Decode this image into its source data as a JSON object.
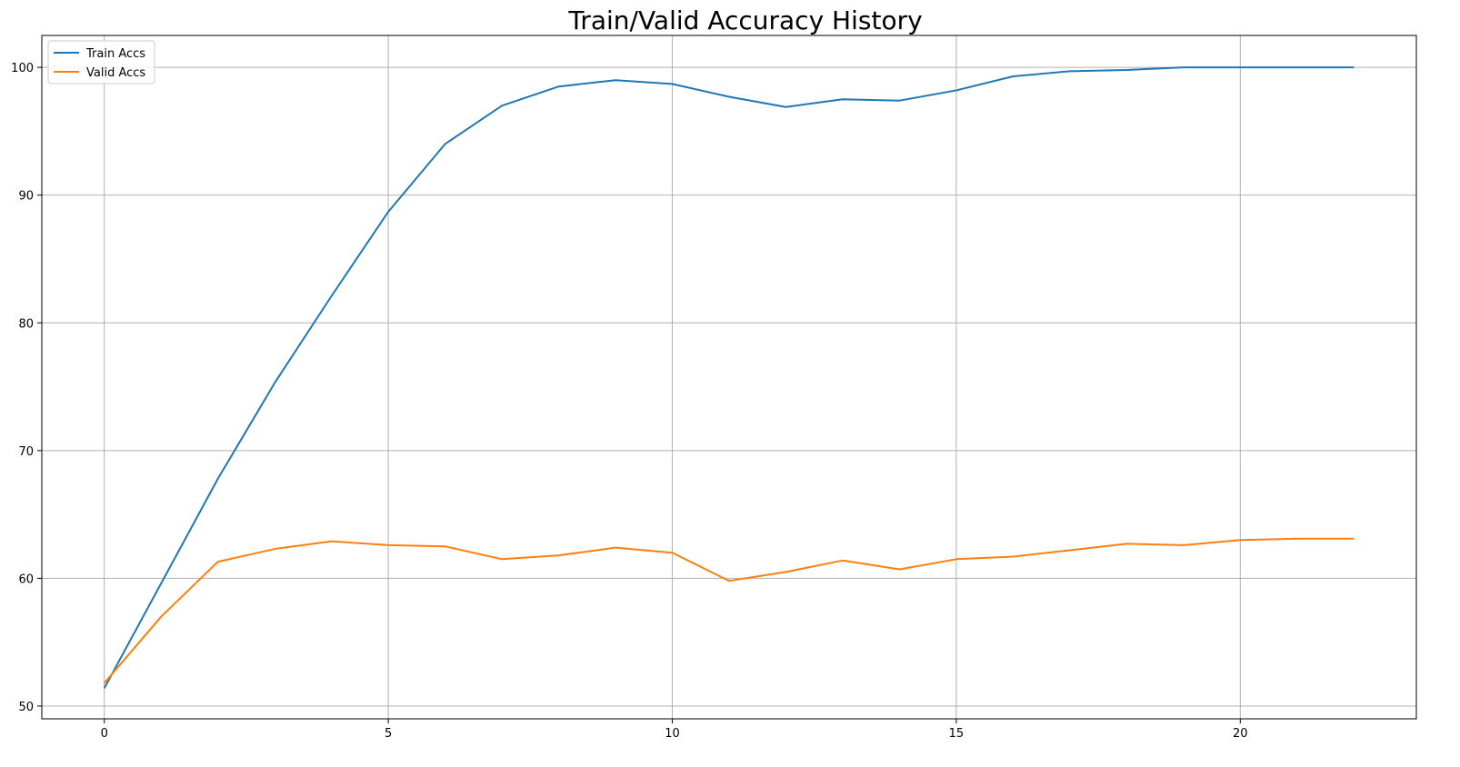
{
  "chart_data": {
    "type": "line",
    "title": "Train/Valid Accuracy History",
    "xlabel": "",
    "ylabel": "",
    "xlim": [
      -1.1,
      23.1
    ],
    "ylim": [
      49,
      102.5
    ],
    "xticks": [
      0,
      5,
      10,
      15,
      20
    ],
    "yticks": [
      50,
      60,
      70,
      80,
      90,
      100
    ],
    "grid": true,
    "legend_position": "top-left",
    "x": [
      0,
      1,
      2,
      3,
      4,
      5,
      6,
      7,
      8,
      9,
      10,
      11,
      12,
      13,
      14,
      15,
      16,
      17,
      18,
      19,
      20,
      21,
      22
    ],
    "series": [
      {
        "name": "Train Accs",
        "color": "#1f77b4",
        "values": [
          51.4,
          59.6,
          67.8,
          75.3,
          82.1,
          88.7,
          94.0,
          97.0,
          98.5,
          99.0,
          98.7,
          97.7,
          96.9,
          97.5,
          97.4,
          98.2,
          99.3,
          99.7,
          99.8,
          100.0,
          100.0,
          100.0,
          100.0
        ]
      },
      {
        "name": "Valid Accs",
        "color": "#ff7f0e",
        "values": [
          51.8,
          57.0,
          61.3,
          62.3,
          62.9,
          62.6,
          62.5,
          61.5,
          61.8,
          62.4,
          62.0,
          59.8,
          60.5,
          61.4,
          60.7,
          61.5,
          61.7,
          62.2,
          62.7,
          62.6,
          63.0,
          63.1,
          63.1
        ]
      }
    ]
  }
}
